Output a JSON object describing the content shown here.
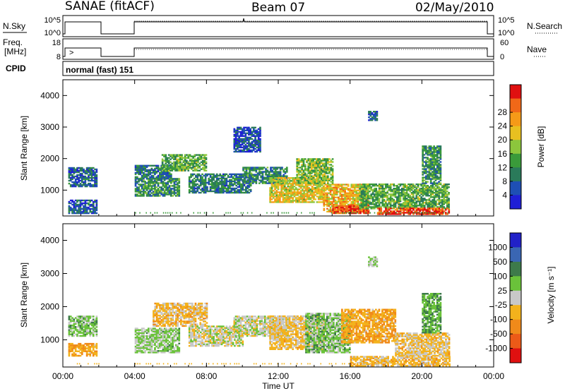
{
  "header": {
    "station": "SANAE (fitACF)",
    "beam": "Beam 07",
    "date": "02/May/2010"
  },
  "panels": {
    "nsky": {
      "left_label": "N.Sky",
      "left_ticks": [
        "10^5",
        "10^0"
      ],
      "right_label": "N.Search",
      "right_ticks": [
        "10^5",
        "10^0"
      ]
    },
    "freq": {
      "left_label_1": "Freq.",
      "left_label_2": "[MHz]",
      "left_ticks": [
        "18",
        "8"
      ],
      "right_label": "Nave",
      "right_ticks": [
        "60",
        "0"
      ]
    },
    "cpid": {
      "label": "CPID",
      "value": "normal (fast) 151"
    }
  },
  "colors": {
    "power": [
      "#1f1fd6",
      "#1e4fb4",
      "#2a7a5a",
      "#3a9a3a",
      "#8cc63c",
      "#e8c020",
      "#f59a18",
      "#f06818",
      "#e01010"
    ],
    "velocity": [
      "#2121c8",
      "#3a66b3",
      "#3d7a4a",
      "#6ac23a",
      "#c8c8c8",
      "#f3b21c",
      "#f08a1a",
      "#ec5a18",
      "#e01010"
    ]
  },
  "chart_data": [
    {
      "type": "heatmap",
      "title": "",
      "ylabel": "Slant Range [km]",
      "xlabel": "",
      "xlim": [
        "00:00",
        "00:00"
      ],
      "ylim": [
        180,
        4500
      ],
      "x_ticks": [
        "00:00",
        "04:00",
        "08:00",
        "12:00",
        "16:00",
        "20:00",
        "00:00"
      ],
      "y_ticks": [
        "1000",
        "2000",
        "3000",
        "4000"
      ],
      "colorbar": {
        "label": "Power [dB]",
        "ticks": [
          "4",
          "8",
          "12",
          "16",
          "20",
          "24",
          "28"
        ],
        "range": [
          0,
          30
        ]
      },
      "data_gap_hours": [
        2.0,
        4.0
      ],
      "clusters": [
        {
          "t": [
            0.3,
            1.9
          ],
          "r": [
            250,
            700
          ],
          "v": 6
        },
        {
          "t": [
            0.3,
            1.9
          ],
          "r": [
            1100,
            1700
          ],
          "v": 6
        },
        {
          "t": [
            4.0,
            6.5
          ],
          "r": [
            800,
            1350
          ],
          "v": 10
        },
        {
          "t": [
            4.0,
            6.0
          ],
          "r": [
            1350,
            1800
          ],
          "v": 8
        },
        {
          "t": [
            5.5,
            8.0
          ],
          "r": [
            1600,
            2100
          ],
          "v": 12
        },
        {
          "t": [
            7.0,
            10.5
          ],
          "r": [
            900,
            1500
          ],
          "v": 8
        },
        {
          "t": [
            10.0,
            12.5
          ],
          "r": [
            1200,
            1700
          ],
          "v": 9
        },
        {
          "t": [
            11.5,
            14.5
          ],
          "r": [
            600,
            1400
          ],
          "v": 18
        },
        {
          "t": [
            13.0,
            15.0
          ],
          "r": [
            1200,
            2000
          ],
          "v": 14
        },
        {
          "t": [
            14.5,
            17.0
          ],
          "r": [
            300,
            1200
          ],
          "v": 20
        },
        {
          "t": [
            15.0,
            17.0
          ],
          "r": [
            250,
            500
          ],
          "v": 27
        },
        {
          "t": [
            16.5,
            21.5
          ],
          "r": [
            400,
            1200
          ],
          "v": 12
        },
        {
          "t": [
            17.5,
            21.5
          ],
          "r": [
            220,
            420
          ],
          "v": 27
        },
        {
          "t": [
            17.0,
            17.5
          ],
          "r": [
            3200,
            3500
          ],
          "v": 6
        },
        {
          "t": [
            20.0,
            21.0
          ],
          "r": [
            1200,
            2400
          ],
          "v": 10
        },
        {
          "t": [
            9.5,
            11.0
          ],
          "r": [
            2200,
            3000
          ],
          "v": 5
        }
      ]
    },
    {
      "type": "heatmap",
      "title": "",
      "ylabel": "Slant Range [km]",
      "xlabel": "Time UT",
      "xlim": [
        "00:00",
        "00:00"
      ],
      "ylim": [
        180,
        4500
      ],
      "x_ticks": [
        "00:00",
        "04:00",
        "08:00",
        "12:00",
        "16:00",
        "20:00",
        "00:00"
      ],
      "y_ticks": [
        "1000",
        "2000",
        "3000",
        "4000"
      ],
      "colorbar": {
        "label": "Velocity [m s⁻¹]",
        "ticks": [
          "1000",
          "500",
          "100",
          "25",
          "-25",
          "-100",
          "-500",
          "-1000"
        ],
        "range": [
          -1000,
          1000
        ]
      },
      "data_gap_hours": [
        2.0,
        4.0
      ],
      "clusters": [
        {
          "t": [
            0.3,
            1.9
          ],
          "r": [
            500,
            900
          ],
          "v": -300
        },
        {
          "t": [
            0.3,
            1.9
          ],
          "r": [
            1100,
            1700
          ],
          "v": 200
        },
        {
          "t": [
            4.0,
            6.5
          ],
          "r": [
            600,
            1350
          ],
          "v": 150
        },
        {
          "t": [
            5.0,
            8.0
          ],
          "r": [
            1400,
            2100
          ],
          "v": -200
        },
        {
          "t": [
            7.0,
            10.0
          ],
          "r": [
            800,
            1400
          ],
          "v": 0
        },
        {
          "t": [
            9.5,
            12.5
          ],
          "r": [
            1100,
            1700
          ],
          "v": 10
        },
        {
          "t": [
            11.5,
            14.5
          ],
          "r": [
            700,
            1700
          ],
          "v": -150
        },
        {
          "t": [
            13.5,
            16.0
          ],
          "r": [
            600,
            1800
          ],
          "v": 200
        },
        {
          "t": [
            15.5,
            18.5
          ],
          "r": [
            900,
            1900
          ],
          "v": -300
        },
        {
          "t": [
            16.0,
            21.5
          ],
          "r": [
            200,
            500
          ],
          "v": -200
        },
        {
          "t": [
            18.5,
            21.5
          ],
          "r": [
            500,
            1200
          ],
          "v": -150
        },
        {
          "t": [
            17.0,
            17.5
          ],
          "r": [
            3200,
            3500
          ],
          "v": 100
        },
        {
          "t": [
            20.0,
            21.0
          ],
          "r": [
            1200,
            2400
          ],
          "v": 300
        }
      ]
    }
  ]
}
